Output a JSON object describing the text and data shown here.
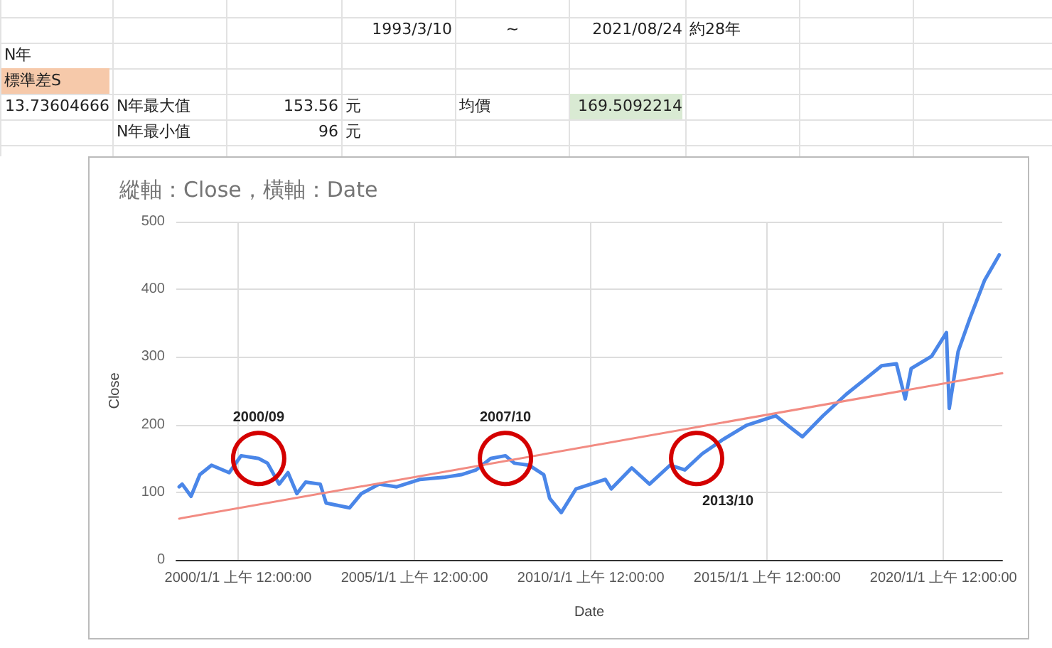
{
  "chart_data": {
    "type": "line",
    "title": "縱軸：Close，橫軸：Date",
    "xlabel": "Date",
    "ylabel": "Close",
    "annotations": [
      "1993/3/10",
      "~",
      "2021/08/24",
      "約28年",
      "N年",
      "標準差S",
      "13.73604666",
      "N年最大值",
      "153.56",
      "元",
      "均價",
      "169.5092214",
      "N年最小值",
      "96",
      "元",
      {
        "text": "2000/09",
        "x": "2000-08",
        "y": 150
      },
      {
        "text": "2007/10",
        "x": "2007-08",
        "y": 150
      },
      {
        "text": "2013/10",
        "x": "2013-01",
        "y": 150
      }
    ],
    "series": [
      {
        "color": "#4a86e8",
        "x": [
          "1998-05",
          "1998-06",
          "1998-09",
          "1998-12",
          "1999-04",
          "1999-10",
          "2000-02",
          "2000-08",
          "2000-11",
          "2001-03",
          "2001-06",
          "2001-09",
          "2001-12",
          "2002-05",
          "2002-07",
          "2003-03",
          "2003-07",
          "2004-01",
          "2004-07",
          "2005-03",
          "2005-11",
          "2006-05",
          "2006-10",
          "2007-03",
          "2007-08",
          "2007-11",
          "2008-04",
          "2008-09",
          "2008-11",
          "2009-03",
          "2009-08",
          "2010-01",
          "2010-06",
          "2010-08",
          "2011-03",
          "2011-09",
          "2012-04",
          "2012-09",
          "2013-03",
          "2013-10",
          "2014-06",
          "2015-04",
          "2015-08",
          "2016-01",
          "2016-08",
          "2017-04",
          "2017-12",
          "2018-04",
          "2018-09",
          "2018-12",
          "2019-02",
          "2019-09",
          "2020-02",
          "2020-03",
          "2020-06",
          "2020-10",
          "2021-03",
          "2021-08"
        ],
        "values": [
          108,
          112,
          94,
          126,
          140,
          129,
          154,
          150,
          143,
          112,
          129,
          98,
          115,
          112,
          84,
          77,
          98,
          112,
          108,
          119,
          122,
          126,
          133,
          150,
          154,
          143,
          140,
          126,
          91,
          70,
          105,
          112,
          119,
          105,
          136,
          112,
          140,
          133,
          157,
          178,
          199,
          213,
          199,
          182,
          213,
          245,
          273,
          287,
          290,
          238,
          283,
          301,
          336,
          224,
          308,
          357,
          413,
          451
        ]
      },
      {
        "type": "line",
        "color": "#f28b82",
        "x": [
          "1998-05",
          "2021-09"
        ],
        "values": [
          61,
          276
        ]
      }
    ],
    "xlim": [
      "1998-04",
      "2021-09"
    ],
    "xticks": [
      {
        "value": "2000-01-01",
        "label": "2000/1/1 上午 12:00:00"
      },
      {
        "value": "2005-01-01",
        "label": "2005/1/1 上午 12:00:00"
      },
      {
        "value": "2010-01-01",
        "label": "2010/1/1 上午 12:00:00"
      },
      {
        "value": "2015-01-01",
        "label": "2015/1/1 上午 12:00:00"
      },
      {
        "value": "2020-01-01",
        "label": "2020/1/1 上午 12:00:00"
      }
    ],
    "ylim": [
      0,
      500
    ],
    "yticks": [
      0,
      100,
      200,
      300,
      400,
      500
    ],
    "grid": true,
    "marker": "none",
    "line_style": "solid"
  }
}
